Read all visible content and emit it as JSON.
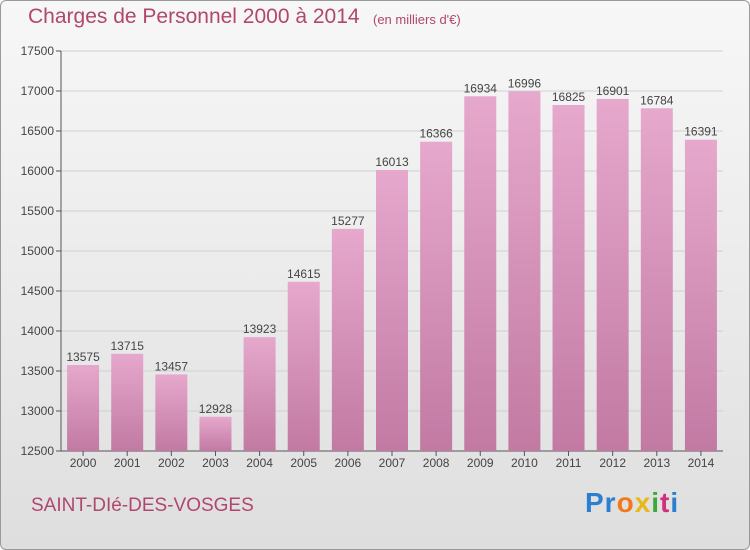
{
  "header": {
    "title": "Charges de Personnel 2000 à 2014",
    "subtitle": "(en milliers d'€)"
  },
  "footer": {
    "city": "SAINT-DIé-DES-VOSGES",
    "logo_parts": [
      "Pr",
      "o",
      "x",
      "i",
      "t",
      "i"
    ]
  },
  "colors": {
    "bar_light": "#e6a8cc",
    "bar_dark": "#c27aa3",
    "accent": "#b0476f",
    "grid": "#d0d0d0"
  },
  "chart_data": {
    "type": "bar",
    "title": "Charges de Personnel 2000 à 2014",
    "subtitle": "(en milliers d'€)",
    "categories": [
      "2000",
      "2001",
      "2002",
      "2003",
      "2004",
      "2005",
      "2006",
      "2007",
      "2008",
      "2009",
      "2010",
      "2011",
      "2012",
      "2013",
      "2014"
    ],
    "values": [
      13575,
      13715,
      13457,
      12928,
      13923,
      14615,
      15277,
      16013,
      16366,
      16934,
      16996,
      16825,
      16901,
      16784,
      16391
    ],
    "ylim": [
      12500,
      17500
    ],
    "yticks": [
      12500,
      13000,
      13500,
      14000,
      14500,
      15000,
      15500,
      16000,
      16500,
      17000,
      17500
    ],
    "grid": true,
    "data_labels": true
  }
}
